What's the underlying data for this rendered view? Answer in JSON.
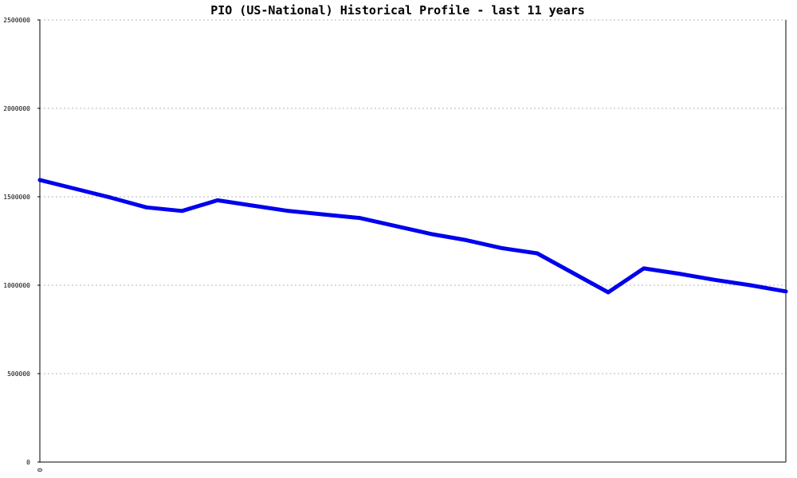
{
  "chart_data": {
    "type": "line",
    "title": "PIO (US-National) Historical Profile - last 11 years",
    "xlabel": "",
    "ylabel": "",
    "x_tick_labels": [
      "0"
    ],
    "y_ticks": [
      0,
      500000,
      1000000,
      1500000,
      2000000,
      2500000
    ],
    "y_tick_labels": [
      "0",
      "500000",
      "1000000",
      "1500000",
      "2000000",
      "2500000"
    ],
    "ylim": [
      0,
      2500000
    ],
    "x": [
      0,
      1,
      2,
      3,
      4,
      5,
      6,
      7,
      8,
      9,
      10,
      11,
      12,
      13,
      14,
      15,
      16,
      17,
      18,
      19,
      20,
      21
    ],
    "xlim": [
      0,
      21
    ],
    "grid": true,
    "series": [
      {
        "color": "#0000ee",
        "values": [
          1595000,
          1545000,
          1495000,
          1440000,
          1420000,
          1480000,
          1450000,
          1420000,
          1400000,
          1380000,
          1335000,
          1290000,
          1255000,
          1210000,
          1180000,
          1070000,
          960000,
          1095000,
          1065000,
          1030000,
          1000000,
          965000
        ]
      }
    ]
  }
}
